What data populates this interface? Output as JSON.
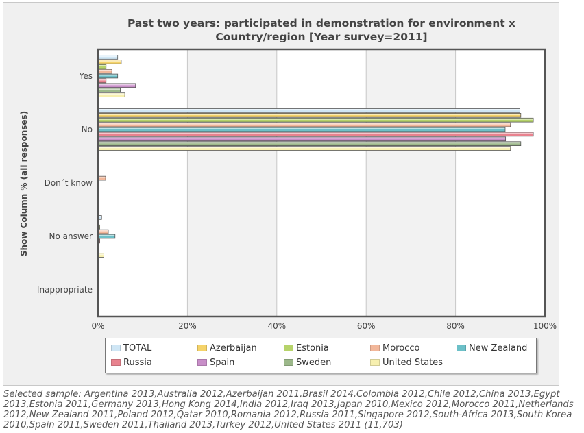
{
  "chart_data": {
    "type": "bar",
    "orientation": "horizontal",
    "title_line1": "Past two years: participated in demonstration for environment x",
    "title_line2": "Country/region [Year survey=2011]",
    "ylabel": "Show Column % (all responses)",
    "xlabel": "",
    "xlim": [
      0,
      100
    ],
    "xticks": [
      "0%",
      "20%",
      "40%",
      "60%",
      "80%",
      "100%"
    ],
    "grid": true,
    "legend_position": "bottom",
    "categories": [
      "Yes",
      "No",
      "Don´t know",
      "No answer",
      "Inappropriate"
    ],
    "series": [
      {
        "name": "TOTAL",
        "color": "#cfe6f5",
        "values": [
          4.4,
          94.4,
          0.2,
          0.8,
          0.2
        ]
      },
      {
        "name": "Azerbaijan",
        "color": "#f5d36a",
        "values": [
          5.2,
          94.6,
          0.2,
          0.0,
          0.0
        ]
      },
      {
        "name": "Estonia",
        "color": "#b6d36a",
        "values": [
          1.8,
          97.4,
          0.2,
          0.4,
          0.2
        ]
      },
      {
        "name": "Morocco",
        "color": "#f2b79a",
        "values": [
          3.1,
          92.3,
          1.7,
          2.3,
          0.2
        ]
      },
      {
        "name": "New Zealand",
        "color": "#6cc0c8",
        "values": [
          4.4,
          91.1,
          0.2,
          3.8,
          0.2
        ]
      },
      {
        "name": "Russia",
        "color": "#e8828e",
        "values": [
          1.8,
          97.4,
          0.2,
          0.4,
          0.2
        ]
      },
      {
        "name": "Spain",
        "color": "#c88ec8",
        "values": [
          8.4,
          91.2,
          0.2,
          0.2,
          0.2
        ]
      },
      {
        "name": "Sweden",
        "color": "#9cb88a",
        "values": [
          5.0,
          94.6,
          0.2,
          0.2,
          0.2
        ]
      },
      {
        "name": "United States",
        "color": "#f7f0b0",
        "values": [
          6.0,
          92.3,
          0.2,
          1.3,
          0.2
        ]
      }
    ]
  },
  "footnote": "Selected sample: Argentina 2013,Australia 2012,Azerbaijan 2011,Brasil 2014,Colombia 2012,Chile 2012,China 2013,Egypt 2013,Estonia 2011,Germany 2013,Hong Kong 2014,India 2012,Iraq 2013,Japan 2010,Mexico 2012,Morocco 2011,Netherlands 2012,New Zealand 2011,Poland 2012,Qatar 2010,Romania 2012,Russia 2011,Singapore 2012,South-Africa 2013,South Korea 2010,Spain 2011,Sweden 2011,Thailand 2013,Turkey 2012,United States 2011 (11,703)"
}
